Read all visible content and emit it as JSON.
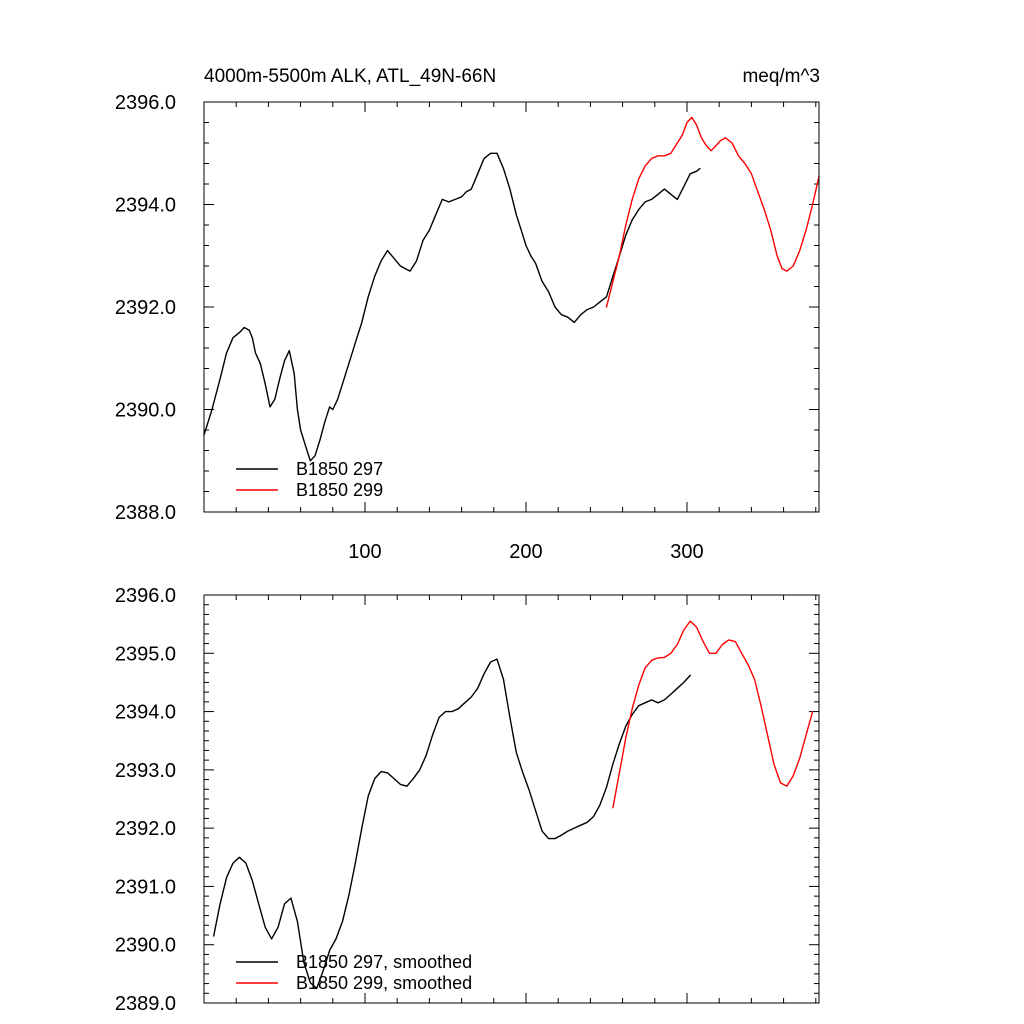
{
  "chart_data": [
    {
      "type": "line",
      "title": "4000m-5500m ALK, ATL_49N-66N",
      "units": "meq/m^3",
      "xlabel": "",
      "ylabel": "",
      "xlim": [
        0,
        382
      ],
      "ylim": [
        2388.0,
        2396.0
      ],
      "xticks": [
        100,
        200,
        300
      ],
      "xtick_labels": [
        "100",
        "200",
        "300"
      ],
      "yticks": [
        2388.0,
        2390.0,
        2392.0,
        2394.0,
        2396.0
      ],
      "ytick_labels": [
        "2388.0",
        "2390.0",
        "2392.0",
        "2394.0",
        "2396.0"
      ],
      "legend_position": "bottom-left",
      "series": [
        {
          "name": "B1850 297",
          "color": "#000000",
          "x": [
            0,
            5,
            10,
            14,
            18,
            22,
            25,
            28,
            30,
            32,
            35,
            38,
            41,
            44,
            47,
            50,
            53,
            56,
            58,
            60,
            63,
            66,
            69,
            72,
            75,
            78,
            80,
            83,
            86,
            90,
            94,
            98,
            102,
            106,
            110,
            114,
            118,
            122,
            125,
            128,
            132,
            136,
            140,
            144,
            148,
            152,
            156,
            160,
            163,
            166,
            170,
            174,
            178,
            182,
            186,
            190,
            194,
            197,
            200,
            203,
            206,
            210,
            214,
            218,
            222,
            226,
            230,
            234,
            238,
            242,
            246,
            250,
            254,
            258,
            262,
            266,
            270,
            274,
            278,
            282,
            286,
            290,
            294,
            298,
            302,
            306,
            308
          ],
          "values": [
            2389.5,
            2390.0,
            2390.6,
            2391.1,
            2391.4,
            2391.5,
            2391.6,
            2391.55,
            2391.4,
            2391.1,
            2390.9,
            2390.5,
            2390.05,
            2390.2,
            2390.6,
            2390.95,
            2391.15,
            2390.7,
            2390.0,
            2389.6,
            2389.3,
            2389.0,
            2389.1,
            2389.4,
            2389.75,
            2390.05,
            2390.0,
            2390.2,
            2390.5,
            2390.9,
            2391.3,
            2391.7,
            2392.2,
            2392.6,
            2392.9,
            2393.1,
            2392.95,
            2392.8,
            2392.75,
            2392.7,
            2392.9,
            2393.3,
            2393.5,
            2393.8,
            2394.1,
            2394.05,
            2394.1,
            2394.15,
            2394.25,
            2394.3,
            2394.6,
            2394.9,
            2395.0,
            2395.0,
            2394.7,
            2394.3,
            2393.8,
            2393.5,
            2393.2,
            2393.0,
            2392.85,
            2392.5,
            2392.3,
            2392.0,
            2391.85,
            2391.8,
            2391.7,
            2391.85,
            2391.95,
            2392.0,
            2392.1,
            2392.2,
            2392.6,
            2393.0,
            2393.4,
            2393.7,
            2393.9,
            2394.05,
            2394.1,
            2394.2,
            2394.3,
            2394.2,
            2394.1,
            2394.35,
            2394.6,
            2394.65,
            2394.7
          ]
        },
        {
          "name": "B1850 299",
          "color": "#ff0000",
          "x": [
            250,
            254,
            258,
            262,
            266,
            270,
            274,
            278,
            282,
            286,
            290,
            294,
            297,
            300,
            303,
            306,
            309,
            312,
            315,
            318,
            321,
            324,
            328,
            332,
            336,
            340,
            344,
            348,
            352,
            356,
            359,
            362,
            366,
            370,
            374,
            378,
            382
          ],
          "values": [
            2392.0,
            2392.5,
            2393.0,
            2393.6,
            2394.1,
            2394.5,
            2394.75,
            2394.9,
            2394.95,
            2394.95,
            2395.0,
            2395.2,
            2395.35,
            2395.6,
            2395.7,
            2395.55,
            2395.3,
            2395.15,
            2395.05,
            2395.15,
            2395.25,
            2395.3,
            2395.2,
            2394.95,
            2394.8,
            2394.6,
            2394.25,
            2393.9,
            2393.5,
            2393.0,
            2392.75,
            2392.7,
            2392.8,
            2393.1,
            2393.5,
            2394.0,
            2394.55
          ]
        }
      ]
    },
    {
      "type": "line",
      "title": "",
      "xlabel": "",
      "ylabel": "",
      "xlim": [
        0,
        382
      ],
      "ylim": [
        2389.0,
        2396.0
      ],
      "xticks": [
        100,
        200,
        300
      ],
      "xtick_labels": [],
      "yticks": [
        2389.0,
        2390.0,
        2391.0,
        2392.0,
        2393.0,
        2394.0,
        2395.0,
        2396.0
      ],
      "ytick_labels": [
        "2389.0",
        "2390.0",
        "2391.0",
        "2392.0",
        "2393.0",
        "2394.0",
        "2395.0",
        "2396.0"
      ],
      "legend_position": "bottom-left",
      "series": [
        {
          "name": "B1850 297, smoothed",
          "color": "#000000",
          "x": [
            6,
            10,
            14,
            18,
            22,
            26,
            30,
            34,
            38,
            42,
            46,
            50,
            54,
            58,
            62,
            66,
            70,
            74,
            78,
            82,
            86,
            90,
            94,
            98,
            102,
            106,
            110,
            114,
            118,
            122,
            126,
            130,
            134,
            138,
            142,
            146,
            150,
            154,
            158,
            162,
            166,
            170,
            174,
            178,
            182,
            186,
            190,
            194,
            198,
            202,
            206,
            210,
            214,
            218,
            222,
            226,
            230,
            234,
            238,
            242,
            246,
            250,
            254,
            258,
            262,
            266,
            270,
            274,
            278,
            282,
            286,
            290,
            294,
            298,
            302
          ],
          "values": [
            2390.15,
            2390.7,
            2391.15,
            2391.4,
            2391.5,
            2391.4,
            2391.1,
            2390.7,
            2390.3,
            2390.1,
            2390.3,
            2390.7,
            2390.8,
            2390.4,
            2389.7,
            2389.35,
            2389.25,
            2389.55,
            2389.9,
            2390.1,
            2390.4,
            2390.85,
            2391.4,
            2392.0,
            2392.55,
            2392.85,
            2392.97,
            2392.95,
            2392.85,
            2392.75,
            2392.72,
            2392.85,
            2393.0,
            2393.25,
            2393.6,
            2393.9,
            2394.0,
            2394.0,
            2394.05,
            2394.15,
            2394.25,
            2394.4,
            2394.65,
            2394.85,
            2394.9,
            2394.55,
            2393.9,
            2393.3,
            2392.95,
            2392.65,
            2392.3,
            2391.95,
            2391.82,
            2391.82,
            2391.88,
            2391.95,
            2392.0,
            2392.05,
            2392.1,
            2392.2,
            2392.4,
            2392.7,
            2393.1,
            2393.45,
            2393.75,
            2393.95,
            2394.1,
            2394.15,
            2394.2,
            2394.15,
            2394.2,
            2394.3,
            2394.4,
            2394.5,
            2394.62
          ]
        },
        {
          "name": "B1850 299, smoothed",
          "color": "#ff0000",
          "x": [
            254,
            258,
            262,
            266,
            270,
            274,
            278,
            282,
            286,
            290,
            294,
            298,
            302,
            306,
            310,
            314,
            318,
            322,
            326,
            330,
            334,
            338,
            342,
            346,
            350,
            354,
            358,
            362,
            366,
            370,
            374,
            378
          ],
          "values": [
            2392.35,
            2392.95,
            2393.55,
            2394.05,
            2394.45,
            2394.75,
            2394.88,
            2394.92,
            2394.93,
            2395.0,
            2395.15,
            2395.4,
            2395.55,
            2395.45,
            2395.2,
            2395.0,
            2395.0,
            2395.15,
            2395.23,
            2395.2,
            2395.0,
            2394.8,
            2394.55,
            2394.1,
            2393.6,
            2393.1,
            2392.78,
            2392.72,
            2392.9,
            2393.2,
            2393.6,
            2394.0
          ]
        }
      ]
    }
  ]
}
